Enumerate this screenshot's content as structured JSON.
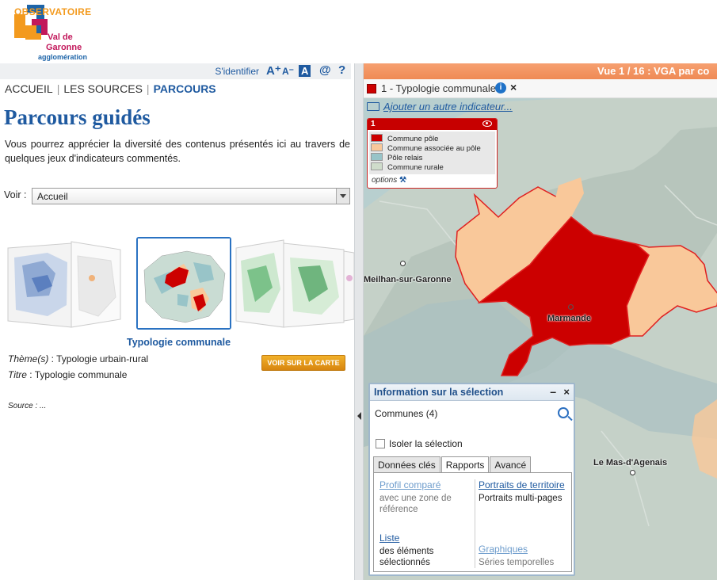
{
  "logo": {
    "line1": "OBSERVATOIRE",
    "line2": "Val de",
    "line3": "Garonne",
    "line4": "agglomération"
  },
  "toolbar": {
    "login": "S'identifier",
    "font_up": "A⁺",
    "font_down": "A⁻",
    "contrast": "A",
    "at": "@",
    "help": "?"
  },
  "nav": {
    "items": [
      "ACCUEIL",
      "LES SOURCES",
      "PARCOURS"
    ]
  },
  "page": {
    "title": "Parcours guidés",
    "intro": "Vous pourrez apprécier la diversité des contenus présentés ici au travers de quelques jeux d'indicateurs commentés.",
    "voir_label": "Voir :",
    "voir_value": "Accueil",
    "caption": "Typologie communale",
    "theme_label": "Thème(s)",
    "theme_value": " : Typologie urbain-rural",
    "titre_label": "Titre",
    "titre_value": " : Typologie communale",
    "source": "Source : ...",
    "voir_carte": "VOIR SUR LA CARTE"
  },
  "map": {
    "header": "Vue 1 / 16 : VGA par co",
    "layer_label": "1 - Typologie communale",
    "add_indicator": "Ajouter un autre indicateur...",
    "legend": {
      "number": "1",
      "items": [
        {
          "label": "Commune pôle",
          "color": "#cc0000"
        },
        {
          "label": "Commune associée au pôle",
          "color": "#f9c89a"
        },
        {
          "label": "Pôle relais",
          "color": "#98c4c8"
        },
        {
          "label": "Commune rurale",
          "color": "#cfdccb"
        }
      ],
      "options": "options"
    },
    "places": [
      "Meilhan-sur-Garonne",
      "Marmande",
      "Le Mas-d'Agenais"
    ],
    "colors": {
      "pole": "#cc0000",
      "associee": "#f9c89a",
      "relais": "#98c4c8",
      "rurale": "#c5d1c8",
      "water": "#b8cfcf"
    }
  },
  "selection": {
    "title": "Information sur la sélection",
    "communes": "Communes (4)",
    "isoler": "Isoler la sélection",
    "tabs": [
      "Données clés",
      "Rapports",
      "Avancé"
    ],
    "active_tab": "Rapports",
    "left": {
      "link1": "Profil comparé",
      "sub1": "avec une zone de",
      "sub1b": "référence",
      "link2": "Liste",
      "sub2": "des éléments",
      "sub2b": "sélectionnés"
    },
    "right": {
      "link1": "Portraits de territoire",
      "sub1": "Portraits multi-pages",
      "link2": "Graphiques",
      "sub2": "Séries temporelles"
    }
  }
}
